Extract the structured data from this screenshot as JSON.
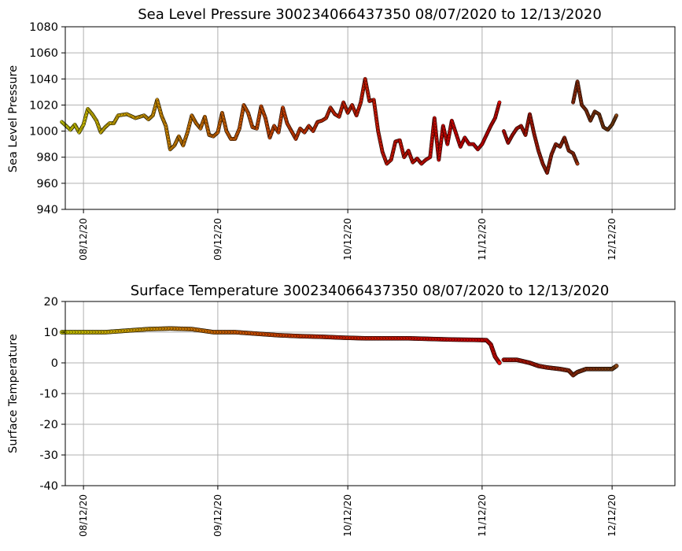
{
  "chart_data": [
    {
      "type": "scatter",
      "title": "Sea Level Pressure 300234066437350  08/07/2020 to 12/13/2020",
      "xlabel": "",
      "ylabel": "Sea Level Pressure",
      "xlim": [
        -4.2,
        136.5
      ],
      "ylim": [
        940,
        1080
      ],
      "yticks": [
        940,
        960,
        980,
        1000,
        1020,
        1040,
        1060,
        1080
      ],
      "xticks": [
        {
          "day": 0,
          "label": "08/12/20"
        },
        {
          "day": 31,
          "label": "09/12/20"
        },
        {
          "day": 61,
          "label": "10/12/20"
        },
        {
          "day": 92,
          "label": "11/12/20"
        },
        {
          "day": 122,
          "label": "12/12/20"
        }
      ],
      "grid": true,
      "color_scale": [
        "#ffff00",
        "#ff8c00",
        "#ff2a00",
        "#ff0000",
        "#8b4513"
      ],
      "color_range": [
        -5,
        122
      ],
      "series": [
        {
          "name": "segment-1",
          "points": [
            [
              -5,
              1007
            ],
            [
              -4,
              1004
            ],
            [
              -3,
              1001
            ],
            [
              -2,
              1005
            ],
            [
              -1,
              999
            ],
            [
              0,
              1005
            ],
            [
              1,
              1017
            ],
            [
              2,
              1013
            ],
            [
              3,
              1008
            ],
            [
              4,
              999
            ],
            [
              5,
              1003
            ],
            [
              6,
              1006
            ],
            [
              7,
              1006
            ],
            [
              8,
              1012
            ],
            [
              10,
              1013
            ],
            [
              12,
              1010
            ],
            [
              14,
              1012
            ],
            [
              15,
              1009
            ],
            [
              16,
              1012
            ],
            [
              17,
              1024
            ],
            [
              18,
              1012
            ],
            [
              19,
              1004
            ],
            [
              20,
              986
            ],
            [
              21,
              989
            ],
            [
              22,
              996
            ],
            [
              23,
              989
            ],
            [
              24,
              999
            ],
            [
              25,
              1012
            ],
            [
              26,
              1006
            ],
            [
              27,
              1002
            ],
            [
              28,
              1011
            ],
            [
              29,
              997
            ],
            [
              30,
              996
            ],
            [
              31,
              999
            ],
            [
              32,
              1014
            ],
            [
              33,
              1000
            ],
            [
              34,
              994
            ],
            [
              35,
              994
            ],
            [
              36,
              1002
            ],
            [
              37,
              1020
            ],
            [
              38,
              1014
            ],
            [
              39,
              1003
            ],
            [
              40,
              1002
            ],
            [
              41,
              1019
            ],
            [
              42,
              1010
            ],
            [
              43,
              995
            ],
            [
              44,
              1004
            ],
            [
              45,
              999
            ],
            [
              46,
              1018
            ],
            [
              47,
              1006
            ],
            [
              48,
              1000
            ],
            [
              49,
              994
            ],
            [
              50,
              1002
            ],
            [
              51,
              999
            ],
            [
              52,
              1004
            ],
            [
              53,
              1000
            ],
            [
              54,
              1007
            ],
            [
              55,
              1008
            ],
            [
              56,
              1010
            ],
            [
              57,
              1018
            ],
            [
              58,
              1013
            ],
            [
              59,
              1011
            ],
            [
              60,
              1022
            ],
            [
              61,
              1014
            ],
            [
              62,
              1020
            ],
            [
              63,
              1012
            ],
            [
              64,
              1022
            ],
            [
              65,
              1040
            ],
            [
              66,
              1023
            ],
            [
              67,
              1024
            ],
            [
              68,
              1000
            ],
            [
              69,
              984
            ],
            [
              70,
              975
            ],
            [
              71,
              978
            ],
            [
              72,
              992
            ],
            [
              73,
              993
            ],
            [
              74,
              980
            ],
            [
              75,
              985
            ],
            [
              76,
              976
            ],
            [
              77,
              979
            ],
            [
              78,
              975
            ],
            [
              79,
              978
            ],
            [
              80,
              980
            ],
            [
              81,
              1010
            ],
            [
              82,
              978
            ],
            [
              83,
              1004
            ],
            [
              84,
              990
            ],
            [
              85,
              1008
            ],
            [
              86,
              998
            ],
            [
              87,
              988
            ],
            [
              88,
              995
            ],
            [
              89,
              990
            ],
            [
              90,
              990
            ],
            [
              91,
              986
            ],
            [
              92,
              990
            ],
            [
              93,
              997
            ],
            [
              94,
              1004
            ],
            [
              95,
              1010
            ],
            [
              96,
              1022
            ]
          ]
        },
        {
          "name": "segment-2",
          "points": [
            [
              97,
              1000
            ],
            [
              98,
              991
            ],
            [
              99,
              997
            ],
            [
              100,
              1002
            ],
            [
              101,
              1004
            ],
            [
              102,
              997
            ],
            [
              103,
              1013
            ],
            [
              104,
              998
            ],
            [
              105,
              985
            ],
            [
              106,
              975
            ],
            [
              107,
              968
            ],
            [
              108,
              982
            ],
            [
              109,
              990
            ],
            [
              110,
              988
            ],
            [
              111,
              995
            ],
            [
              112,
              985
            ],
            [
              113,
              983
            ],
            [
              114,
              975
            ]
          ]
        },
        {
          "name": "segment-3",
          "points": [
            [
              113,
              1022
            ],
            [
              114,
              1038
            ],
            [
              115,
              1020
            ],
            [
              116,
              1016
            ],
            [
              117,
              1008
            ],
            [
              118,
              1015
            ],
            [
              119,
              1013
            ],
            [
              120,
              1003
            ],
            [
              121,
              1001
            ],
            [
              122,
              1005
            ],
            [
              123,
              1012
            ]
          ]
        }
      ]
    },
    {
      "type": "scatter",
      "title": "Surface Temperature 300234066437350  08/07/2020 to 12/13/2020",
      "xlabel": "",
      "ylabel": "Surface Temperature",
      "xlim": [
        -4.2,
        136.5
      ],
      "ylim": [
        -40,
        20
      ],
      "yticks": [
        -40,
        -30,
        -20,
        -10,
        0,
        10,
        20
      ],
      "xticks": [
        {
          "day": 0,
          "label": "08/12/20"
        },
        {
          "day": 31,
          "label": "09/12/20"
        },
        {
          "day": 61,
          "label": "10/12/20"
        },
        {
          "day": 92,
          "label": "11/12/20"
        },
        {
          "day": 122,
          "label": "12/12/20"
        }
      ],
      "grid": true,
      "color_scale": [
        "#ffff00",
        "#ff8c00",
        "#ff2a00",
        "#ff0000",
        "#8b4513"
      ],
      "color_range": [
        -5,
        122
      ],
      "series": [
        {
          "name": "segment-1",
          "points": [
            [
              -5,
              10
            ],
            [
              0,
              10
            ],
            [
              5,
              10
            ],
            [
              10,
              10.5
            ],
            [
              15,
              11
            ],
            [
              20,
              11.2
            ],
            [
              25,
              11
            ],
            [
              30,
              10
            ],
            [
              35,
              10
            ],
            [
              40,
              9.5
            ],
            [
              45,
              9
            ],
            [
              50,
              8.7
            ],
            [
              55,
              8.5
            ],
            [
              60,
              8.2
            ],
            [
              65,
              8
            ],
            [
              70,
              8
            ],
            [
              75,
              8
            ],
            [
              80,
              7.8
            ],
            [
              85,
              7.6
            ],
            [
              90,
              7.5
            ],
            [
              93,
              7.4
            ],
            [
              94,
              6
            ],
            [
              95,
              2
            ],
            [
              96,
              0
            ]
          ]
        },
        {
          "name": "segment-2",
          "points": [
            [
              97,
              1
            ],
            [
              100,
              1
            ],
            [
              103,
              0
            ],
            [
              105,
              -1
            ],
            [
              107,
              -1.5
            ],
            [
              110,
              -2
            ],
            [
              112,
              -2.5
            ],
            [
              113,
              -4
            ],
            [
              114,
              -3
            ],
            [
              116,
              -2
            ],
            [
              118,
              -2
            ],
            [
              120,
              -2
            ],
            [
              122,
              -2
            ],
            [
              123,
              -1
            ]
          ]
        }
      ]
    }
  ]
}
